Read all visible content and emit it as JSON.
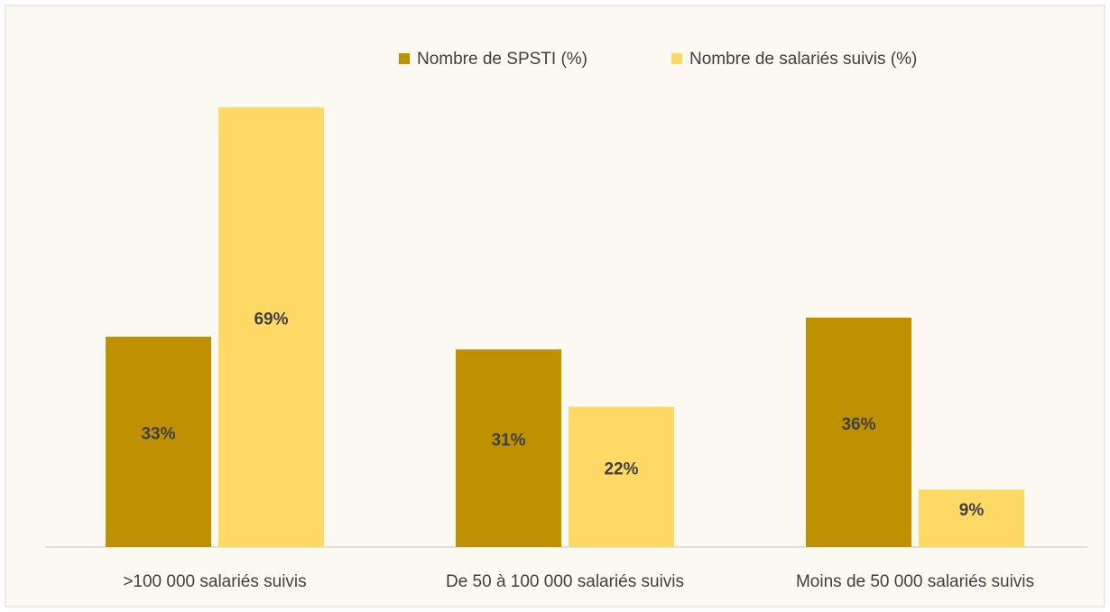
{
  "chart_data": {
    "type": "bar",
    "categories": [
      ">100 000 salariés suivis",
      "De 50 à 100 000 salariés suivis",
      "Moins de 50 000 salariés suivis"
    ],
    "series": [
      {
        "name": "Nombre de SPSTI (%)",
        "color": "#bf9000",
        "values": [
          33,
          31,
          36
        ],
        "value_labels": [
          "33%",
          "31%",
          "36%"
        ]
      },
      {
        "name": "Nombre de salariés suivis (%)",
        "color": "#ffd966",
        "values": [
          69,
          22,
          9
        ],
        "value_labels": [
          "69%",
          "22%",
          "9%"
        ]
      }
    ],
    "legend": "top"
  }
}
